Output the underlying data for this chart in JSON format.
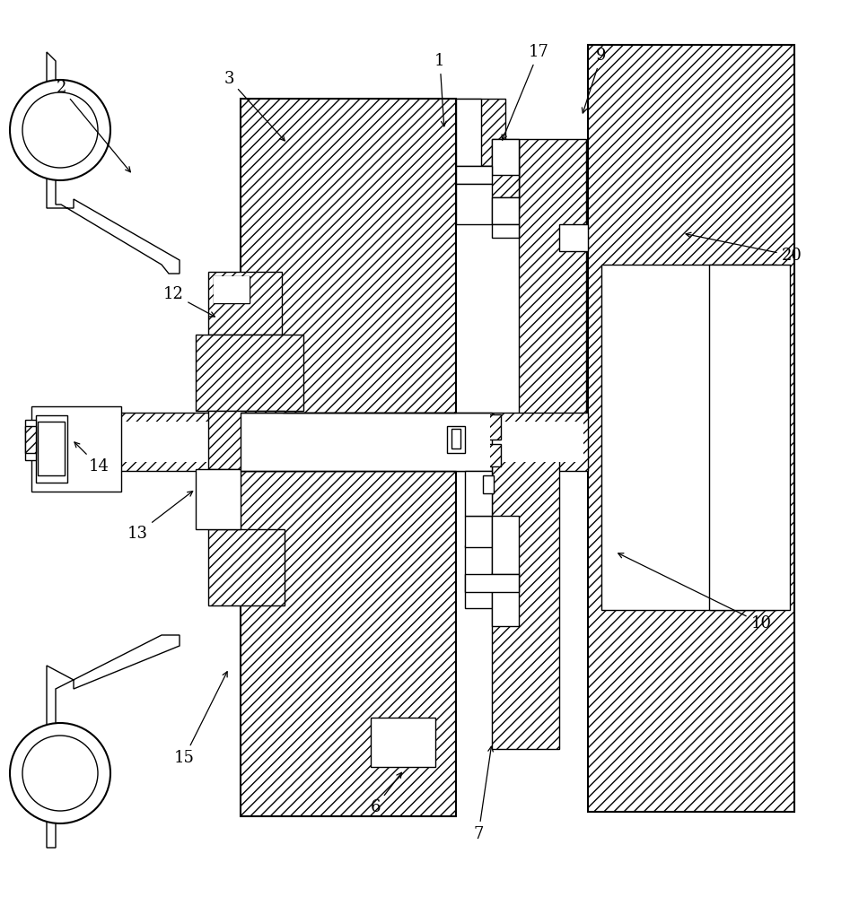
{
  "bg_color": "#ffffff",
  "lw": 1.0,
  "lw_thick": 1.5,
  "hatch_45": "///",
  "hatch_x": "xxx",
  "annotations": [
    [
      "1",
      490,
      68,
      495,
      145
    ],
    [
      "2",
      68,
      98,
      148,
      195
    ],
    [
      "3",
      255,
      88,
      320,
      160
    ],
    [
      "6",
      418,
      900,
      450,
      858
    ],
    [
      "7",
      533,
      930,
      548,
      828
    ],
    [
      "9",
      670,
      62,
      648,
      130
    ],
    [
      "10",
      848,
      695,
      685,
      615
    ],
    [
      "12",
      193,
      328,
      243,
      355
    ],
    [
      "13",
      153,
      595,
      218,
      545
    ],
    [
      "14",
      110,
      520,
      80,
      490
    ],
    [
      "15",
      205,
      845,
      255,
      745
    ],
    [
      "17",
      600,
      58,
      558,
      160
    ],
    [
      "20",
      882,
      285,
      760,
      260
    ]
  ]
}
